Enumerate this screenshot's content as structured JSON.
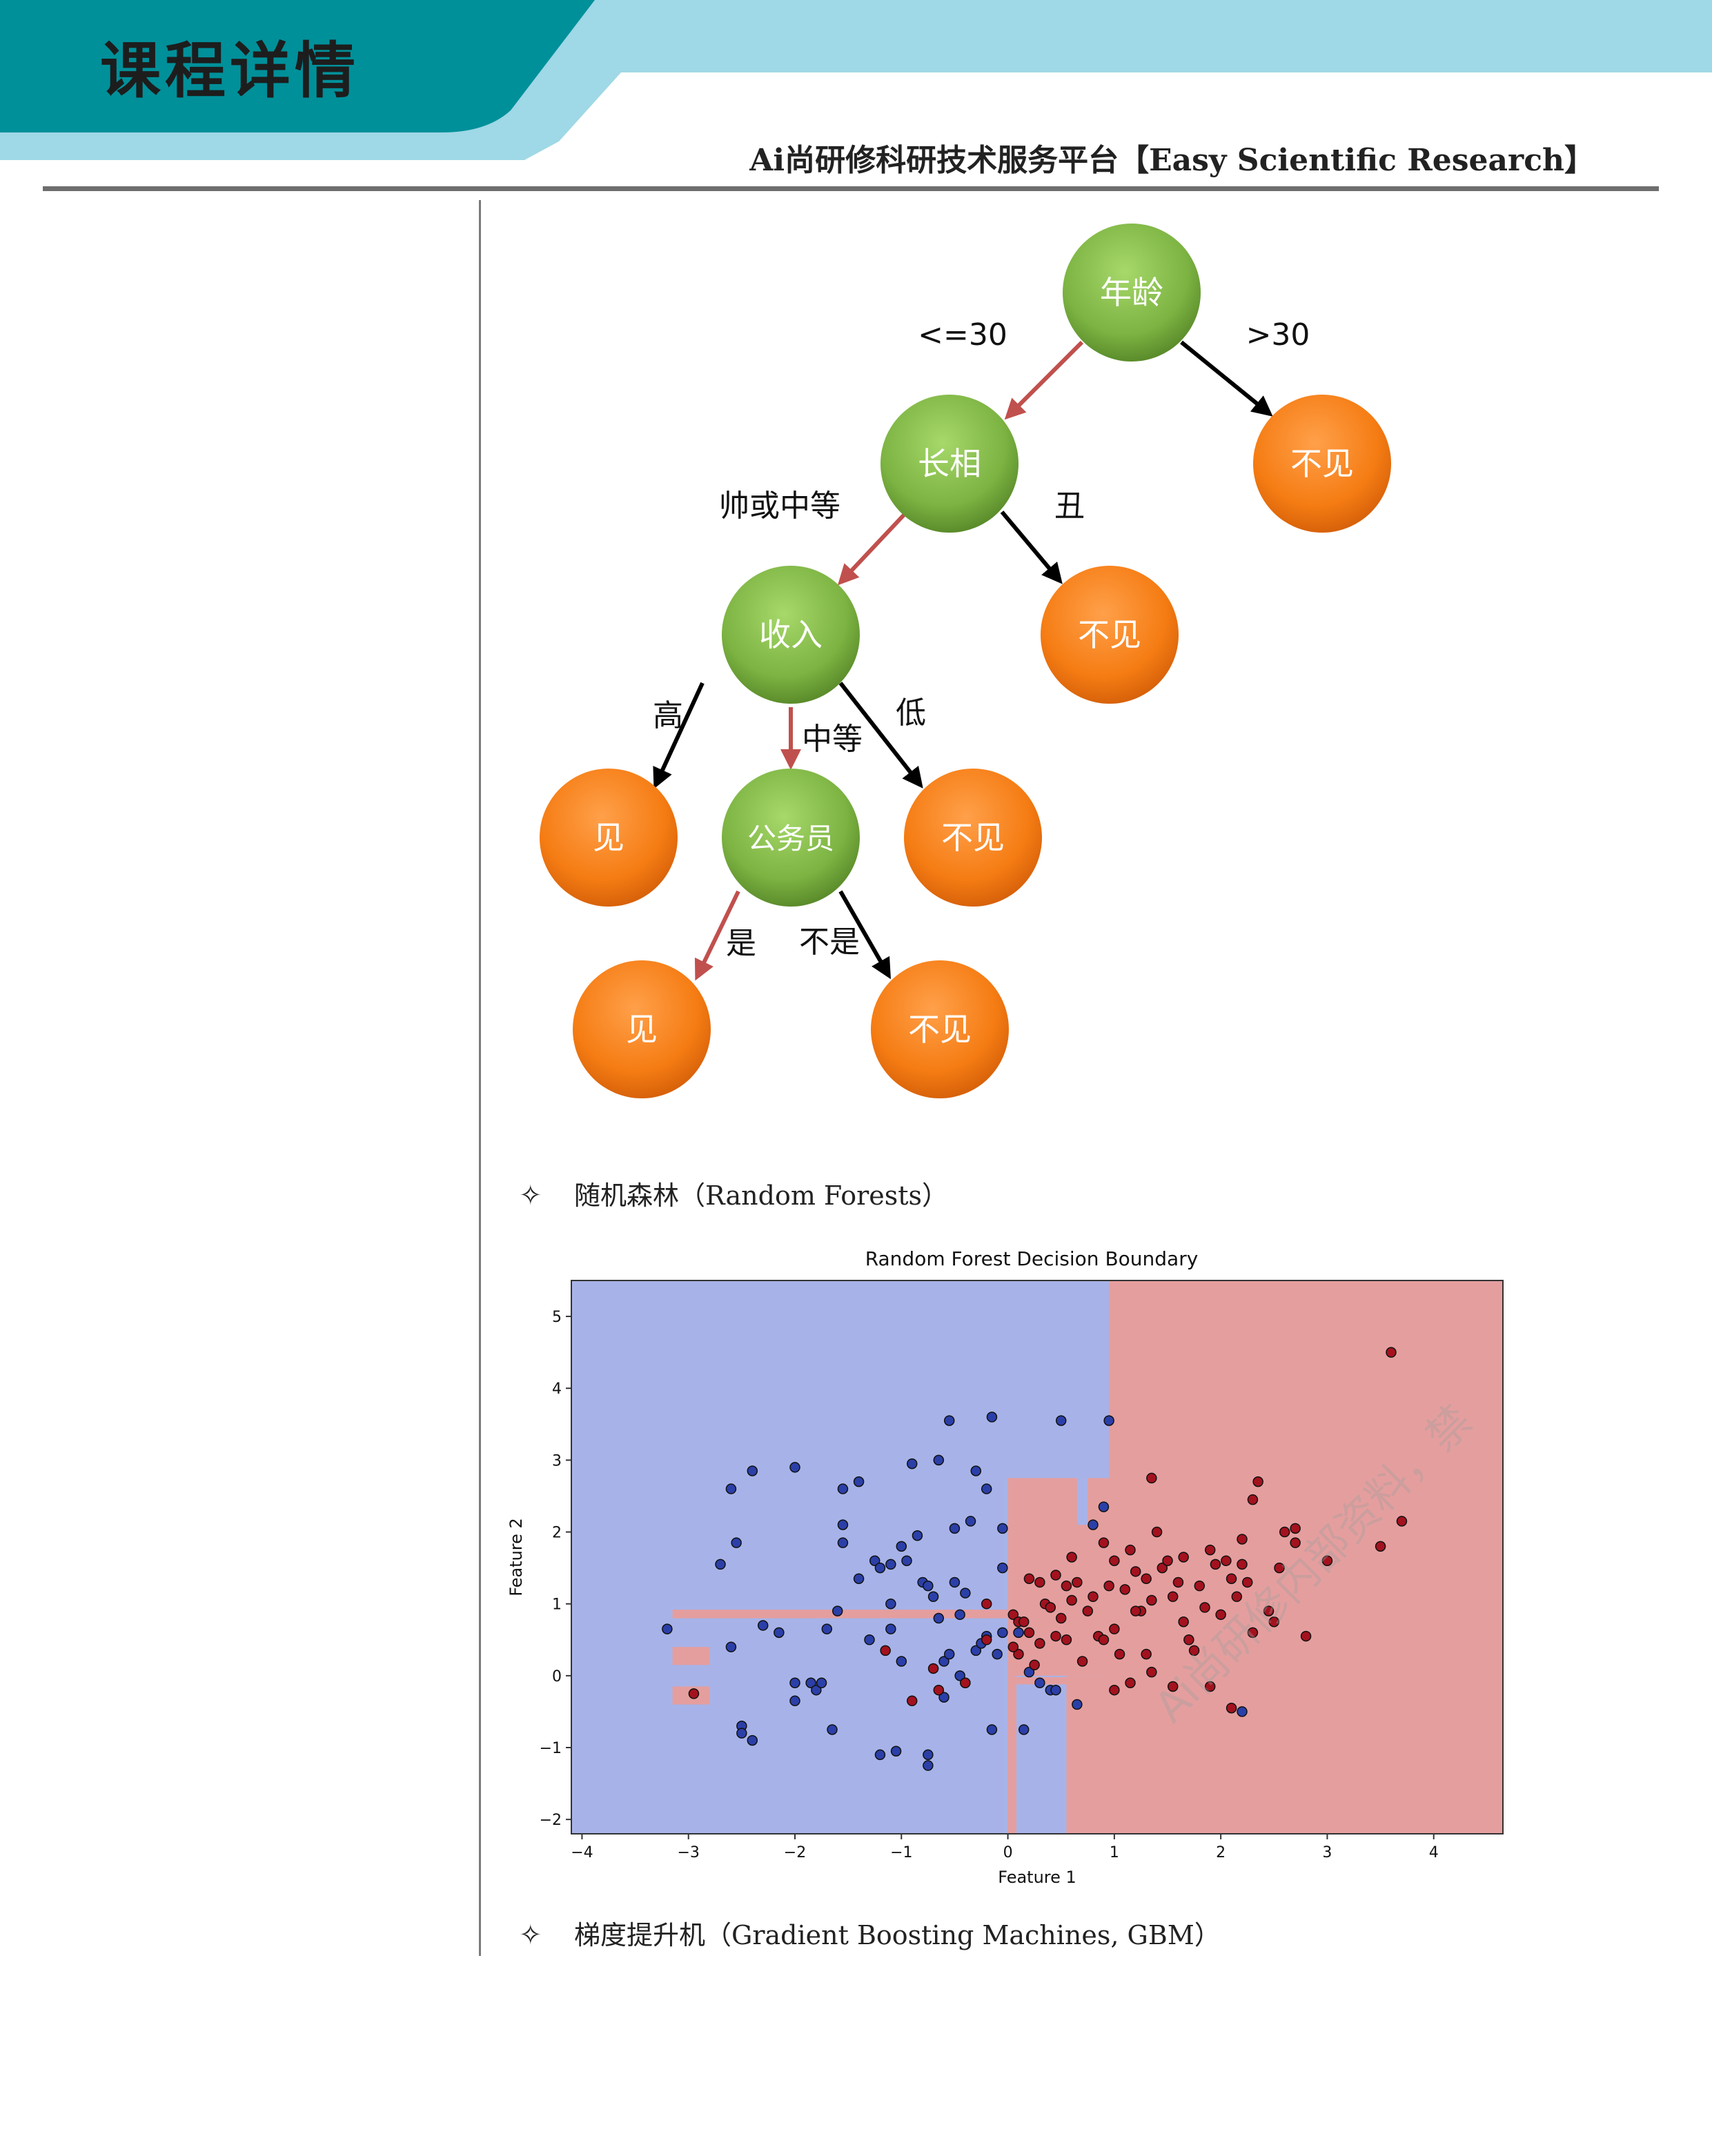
{
  "header": {
    "title": "课程详情",
    "platform": "Ai尚研修科研技术服务平台【Easy Scientific Research】",
    "band_dark": "#00909a",
    "band_light": "#9fd8e6"
  },
  "tree": {
    "nodes": {
      "age": "年龄",
      "looks": "长相",
      "income": "收入",
      "civil": "公务员",
      "no1": "不见",
      "no2": "不见",
      "no3": "不见",
      "no4": "不见",
      "yes1": "见",
      "yes2": "见"
    },
    "edges": {
      "le30": "<=30",
      "gt30": ">30",
      "handsome": "帅或中等",
      "ugly": "丑",
      "high": "高",
      "medium": "中等",
      "low": "低",
      "is": "是",
      "isnot": "不是"
    },
    "colors": {
      "green": "#7cb342",
      "orange": "#f57c13",
      "red_arrow": "#c0504d",
      "black_arrow": "#000000"
    }
  },
  "sections": {
    "rf": "随机森林（Random Forests）",
    "gbm": "梯度提升机（Gradient Boosting Machines, GBM）",
    "star": "✧"
  },
  "watermark": "Ai尚研修内部资料，禁",
  "chart_data": {
    "type": "scatter",
    "title": "Random Forest Decision Boundary",
    "xlabel": "Feature 1",
    "ylabel": "Feature 2",
    "xlim": [
      -4.1,
      4.65
    ],
    "ylim": [
      -2.2,
      5.5
    ],
    "xticks": [
      "−4",
      "−3",
      "−2",
      "−1",
      "0",
      "1",
      "2",
      "3",
      "4"
    ],
    "yticks": [
      "−2",
      "−1",
      "0",
      "1",
      "2",
      "3",
      "4",
      "5"
    ],
    "background_regions": {
      "class0": "#a7b3e8",
      "class1": "#e59e9e"
    },
    "series": [
      {
        "color": "#2b3fa8",
        "points": [
          [
            -3.2,
            0.65
          ],
          [
            -2.6,
            0.4
          ],
          [
            -2.7,
            1.55
          ],
          [
            -2.55,
            1.85
          ],
          [
            -2.6,
            2.6
          ],
          [
            -2.4,
            2.85
          ],
          [
            -2.0,
            2.9
          ],
          [
            -2.5,
            -0.7
          ],
          [
            -2.5,
            -0.8
          ],
          [
            -2.4,
            -0.9
          ],
          [
            -2.3,
            0.7
          ],
          [
            -2.15,
            0.6
          ],
          [
            -2.0,
            -0.1
          ],
          [
            -2.0,
            -0.35
          ],
          [
            -1.85,
            -0.1
          ],
          [
            -1.8,
            -0.2
          ],
          [
            -1.75,
            -0.1
          ],
          [
            -1.7,
            0.65
          ],
          [
            -1.6,
            0.9
          ],
          [
            -1.55,
            2.6
          ],
          [
            -1.4,
            2.7
          ],
          [
            -1.65,
            -0.75
          ],
          [
            -1.55,
            1.85
          ],
          [
            -1.55,
            2.1
          ],
          [
            -1.4,
            1.35
          ],
          [
            -1.3,
            0.5
          ],
          [
            -1.25,
            1.6
          ],
          [
            -1.2,
            1.5
          ],
          [
            -1.1,
            1.55
          ],
          [
            -1.1,
            1.0
          ],
          [
            -1.1,
            0.65
          ],
          [
            -1.0,
            0.2
          ],
          [
            -1.0,
            1.8
          ],
          [
            -0.9,
            2.95
          ],
          [
            -0.85,
            1.95
          ],
          [
            -0.8,
            1.3
          ],
          [
            -0.75,
            1.25
          ],
          [
            -0.7,
            1.1
          ],
          [
            -0.65,
            3.0
          ],
          [
            -0.55,
            3.55
          ],
          [
            -0.5,
            2.05
          ],
          [
            -0.5,
            1.3
          ],
          [
            -0.45,
            0.85
          ],
          [
            -0.4,
            1.15
          ],
          [
            -0.35,
            2.15
          ],
          [
            -0.3,
            2.85
          ],
          [
            -0.2,
            2.6
          ],
          [
            -0.15,
            3.6
          ],
          [
            -0.1,
            0.3
          ],
          [
            -0.05,
            2.05
          ],
          [
            -0.05,
            1.5
          ],
          [
            -0.15,
            -0.75
          ],
          [
            -1.2,
            -1.1
          ],
          [
            -1.05,
            -1.05
          ],
          [
            -0.75,
            -1.1
          ],
          [
            -0.75,
            -1.25
          ],
          [
            -0.6,
            -0.3
          ],
          [
            -0.6,
            0.2
          ],
          [
            -0.55,
            0.3
          ],
          [
            -0.45,
            0.0
          ],
          [
            -0.4,
            -0.1
          ],
          [
            -0.3,
            0.35
          ],
          [
            -0.25,
            0.45
          ],
          [
            -0.2,
            0.55
          ],
          [
            0.1,
            0.6
          ],
          [
            0.2,
            0.05
          ],
          [
            0.3,
            -0.1
          ],
          [
            0.4,
            -0.2
          ],
          [
            0.15,
            -0.75
          ],
          [
            0.45,
            -0.2
          ],
          [
            0.65,
            -0.4
          ],
          [
            0.5,
            3.55
          ],
          [
            0.95,
            3.55
          ],
          [
            0.8,
            2.1
          ],
          [
            0.9,
            2.35
          ],
          [
            2.2,
            -0.5
          ],
          [
            -0.05,
            0.6
          ],
          [
            -0.65,
            0.8
          ],
          [
            -0.95,
            1.6
          ]
        ]
      },
      {
        "color": "#a3121e",
        "points": [
          [
            -2.95,
            -0.25
          ],
          [
            -1.15,
            0.35
          ],
          [
            -0.9,
            -0.35
          ],
          [
            -0.7,
            0.1
          ],
          [
            -0.65,
            -0.2
          ],
          [
            -0.4,
            -0.1
          ],
          [
            -0.2,
            1.0
          ],
          [
            -0.2,
            0.5
          ],
          [
            0.05,
            0.85
          ],
          [
            0.1,
            0.75
          ],
          [
            0.1,
            0.3
          ],
          [
            0.15,
            0.75
          ],
          [
            0.2,
            1.35
          ],
          [
            0.2,
            0.6
          ],
          [
            0.25,
            0.15
          ],
          [
            0.3,
            1.3
          ],
          [
            0.35,
            1.0
          ],
          [
            0.4,
            0.95
          ],
          [
            0.45,
            1.4
          ],
          [
            0.45,
            0.55
          ],
          [
            0.5,
            0.8
          ],
          [
            0.55,
            1.25
          ],
          [
            0.55,
            0.5
          ],
          [
            0.6,
            1.65
          ],
          [
            0.65,
            1.3
          ],
          [
            0.7,
            0.2
          ],
          [
            0.75,
            0.9
          ],
          [
            0.8,
            1.1
          ],
          [
            0.85,
            0.55
          ],
          [
            0.9,
            0.5
          ],
          [
            0.9,
            1.85
          ],
          [
            0.95,
            1.25
          ],
          [
            1.0,
            0.65
          ],
          [
            1.0,
            1.6
          ],
          [
            1.05,
            0.3
          ],
          [
            1.1,
            1.2
          ],
          [
            1.15,
            1.75
          ],
          [
            1.2,
            1.45
          ],
          [
            1.25,
            0.9
          ],
          [
            1.3,
            1.35
          ],
          [
            1.3,
            0.3
          ],
          [
            1.35,
            1.05
          ],
          [
            1.35,
            2.75
          ],
          [
            1.4,
            2.0
          ],
          [
            1.45,
            1.5
          ],
          [
            1.5,
            1.6
          ],
          [
            1.55,
            1.1
          ],
          [
            1.6,
            1.3
          ],
          [
            1.65,
            0.75
          ],
          [
            1.7,
            0.5
          ],
          [
            1.75,
            0.35
          ],
          [
            1.8,
            1.25
          ],
          [
            1.85,
            0.95
          ],
          [
            1.9,
            1.75
          ],
          [
            1.95,
            1.55
          ],
          [
            2.0,
            0.85
          ],
          [
            2.05,
            1.6
          ],
          [
            2.1,
            1.35
          ],
          [
            2.15,
            1.1
          ],
          [
            2.2,
            1.9
          ],
          [
            2.2,
            1.55
          ],
          [
            2.25,
            1.3
          ],
          [
            2.3,
            2.45
          ],
          [
            2.35,
            2.7
          ],
          [
            2.45,
            0.9
          ],
          [
            2.5,
            0.75
          ],
          [
            2.55,
            1.5
          ],
          [
            2.6,
            2.0
          ],
          [
            2.7,
            1.85
          ],
          [
            2.7,
            2.05
          ],
          [
            2.8,
            0.55
          ],
          [
            1.0,
            -0.2
          ],
          [
            1.15,
            -0.1
          ],
          [
            1.35,
            0.05
          ],
          [
            1.55,
            -0.15
          ],
          [
            1.9,
            -0.15
          ],
          [
            2.1,
            -0.45
          ],
          [
            2.3,
            0.6
          ],
          [
            3.0,
            1.6
          ],
          [
            3.5,
            1.8
          ],
          [
            3.6,
            4.5
          ],
          [
            3.7,
            2.15
          ],
          [
            1.65,
            1.65
          ],
          [
            1.2,
            0.9
          ],
          [
            0.6,
            1.05
          ],
          [
            0.05,
            0.4
          ],
          [
            0.3,
            0.45
          ]
        ]
      }
    ]
  }
}
